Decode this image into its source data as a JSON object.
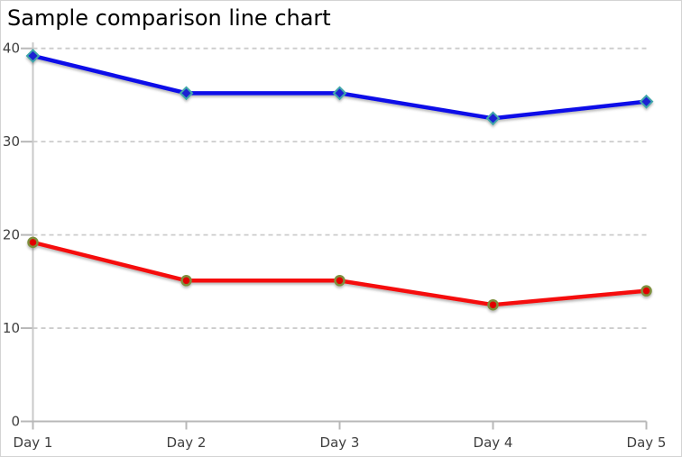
{
  "window": {
    "background": "#ffffff",
    "border_color": "#d4d4d4"
  },
  "chart_data": {
    "type": "line",
    "title": "Sample comparison line chart",
    "categories": [
      "Day 1",
      "Day 2",
      "Day 3",
      "Day 4",
      "Day 5"
    ],
    "series": [
      {
        "name": "blue-series",
        "values": [
          39.2,
          35.2,
          35.2,
          32.5,
          34.3
        ],
        "line_color": "#0d10e8",
        "marker": "diamond",
        "marker_fill": "#1d24d2",
        "marker_stroke": "#3fa6aa"
      },
      {
        "name": "red-series",
        "values": [
          19.2,
          15.1,
          15.1,
          12.5,
          14.0
        ],
        "line_color": "#f50d0d",
        "marker": "circle",
        "marker_fill": "#e00505",
        "marker_stroke": "#7e8f3c"
      }
    ],
    "y_ticks": [
      0,
      10,
      20,
      30,
      40
    ],
    "ylim": [
      0,
      40
    ],
    "grid": "horizontal-dashed",
    "legend_position": "none",
    "gridline_color": "#cccccc",
    "axis_color": "#b8b8b8",
    "baseline_tick_color": "#b8b8b8",
    "left_edge_line_color": "#c9c9c9",
    "tick_label_color": "#3f3f3f",
    "title_color": "#000000"
  }
}
